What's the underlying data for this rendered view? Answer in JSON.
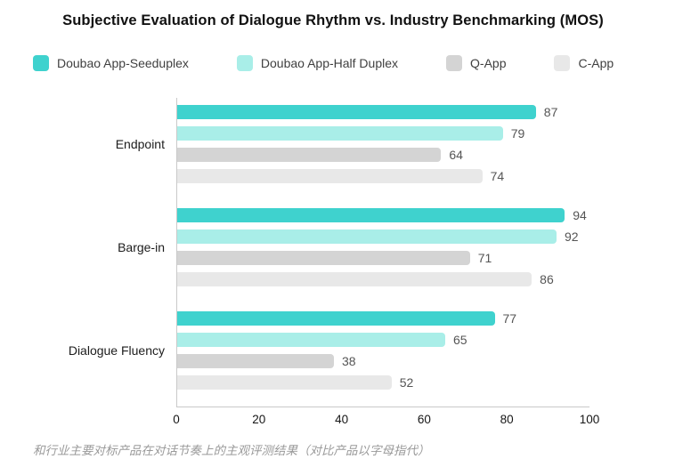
{
  "title": "Subjective Evaluation of Dialogue Rhythm vs. Industry Benchmarking (MOS)",
  "legend": [
    {
      "label": "Doubao App-Seeduplex",
      "color": "#3fd2ce"
    },
    {
      "label": "Doubao App-Half Duplex",
      "color": "#a9eee8"
    },
    {
      "label": "Q-App",
      "color": "#d4d4d4"
    },
    {
      "label": "C-App",
      "color": "#e8e8e8"
    }
  ],
  "chart_data": {
    "type": "bar",
    "orientation": "horizontal",
    "title": "Subjective Evaluation of Dialogue Rhythm vs. Industry Benchmarking (MOS)",
    "categories": [
      "Endpoint",
      "Barge-in",
      "Dialogue Fluency"
    ],
    "series": [
      {
        "name": "Doubao App-Seeduplex",
        "color": "#3fd2ce",
        "values": [
          87,
          94,
          77
        ]
      },
      {
        "name": "Doubao App-Half Duplex",
        "color": "#a9eee8",
        "values": [
          79,
          92,
          65
        ]
      },
      {
        "name": "Q-App",
        "color": "#d4d4d4",
        "values": [
          64,
          71,
          38
        ]
      },
      {
        "name": "C-App",
        "color": "#e8e8e8",
        "values": [
          74,
          86,
          52
        ]
      }
    ],
    "xlim": [
      0,
      100
    ],
    "x_ticks": [
      0,
      20,
      40,
      60,
      80,
      100
    ],
    "value_labels": true,
    "grid": false,
    "legend_position": "top"
  },
  "caption": "和行业主要对标产品在对话节奏上的主观评测结果（对比产品以字母指代）"
}
